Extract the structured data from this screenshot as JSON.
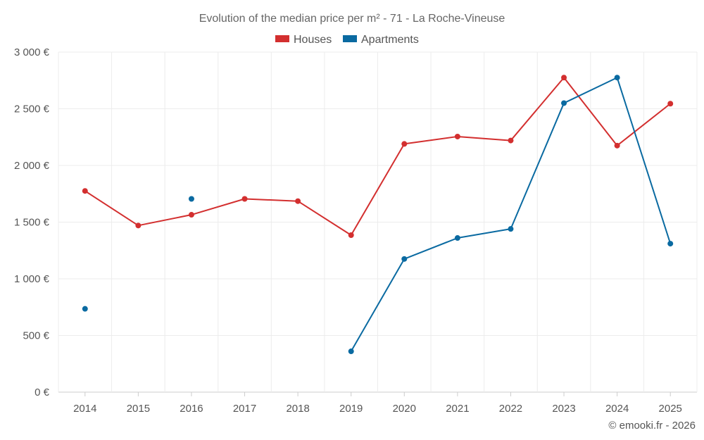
{
  "chart_data": {
    "type": "line",
    "title": "Evolution of the median price per m² - 71 - La Roche-Vineuse",
    "categories": [
      "2014",
      "2015",
      "2016",
      "2017",
      "2018",
      "2019",
      "2020",
      "2021",
      "2022",
      "2023",
      "2024",
      "2025"
    ],
    "ylim": [
      0,
      3000
    ],
    "yticks": [
      0,
      500,
      1000,
      1500,
      2000,
      2500,
      3000
    ],
    "ytick_labels": [
      "0 €",
      "500 €",
      "1 000 €",
      "1 500 €",
      "2 000 €",
      "2 500 €",
      "3 000 €"
    ],
    "grid": true,
    "legend_position": "top-center",
    "series": [
      {
        "name": "Houses",
        "color": "#d32f2f",
        "values": [
          1775,
          1470,
          1565,
          1705,
          1685,
          1385,
          2190,
          2255,
          2220,
          2775,
          2175,
          2545
        ]
      },
      {
        "name": "Apartments",
        "color": "#0a6aa1",
        "values": [
          735,
          null,
          1705,
          null,
          null,
          360,
          1175,
          1360,
          1440,
          2550,
          2775,
          1310
        ]
      }
    ],
    "credit": "© emooki.fr - 2026"
  }
}
